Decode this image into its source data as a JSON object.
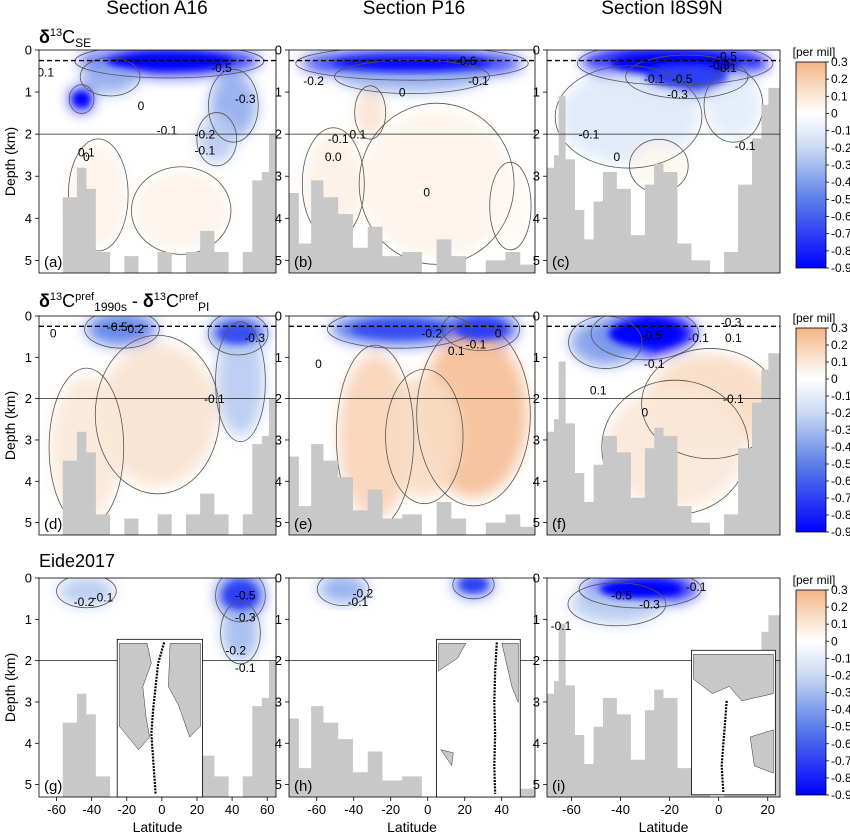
{
  "column_titles": [
    "Section A16",
    "Section P16",
    "Section I8S9N"
  ],
  "row_titles": [
    {
      "prefix": "δ",
      "sup": "13",
      "main": "C",
      "sub": "SE"
    },
    {
      "parts": [
        {
          "t": "δ",
          "bold": true
        },
        {
          "t": "13",
          "sup": true
        },
        {
          "t": "C"
        },
        {
          "t": "pref",
          "sup": true
        },
        {
          "t": "1990s",
          "sub": true
        },
        {
          "t": " - "
        },
        {
          "t": "δ",
          "bold": true
        },
        {
          "t": "13",
          "sup": true
        },
        {
          "t": "C"
        },
        {
          "t": "pref",
          "sup": true
        },
        {
          "t": "PI",
          "sub": true
        }
      ]
    },
    {
      "text": "Eide2017"
    }
  ],
  "colorbar": {
    "unit": "[per mil]",
    "ticks": [
      "0.3",
      "0.2",
      "0.1",
      "0",
      "-0.1",
      "-0.2",
      "-0.3",
      "-0.4",
      "-0.5",
      "-0.6",
      "-0.7",
      "-0.8",
      "-0.9"
    ],
    "stops": [
      {
        "v": 0.3,
        "c": "#f4b486"
      },
      {
        "v": 0.15,
        "c": "#f9dcc4"
      },
      {
        "v": 0.0,
        "c": "#ffffff"
      },
      {
        "v": -0.2,
        "c": "#c9daf3"
      },
      {
        "v": -0.5,
        "c": "#5b7fe8"
      },
      {
        "v": -0.9,
        "c": "#0000ff"
      }
    ]
  },
  "y_axis": {
    "label": "Depth (km)",
    "ticks": [
      "0",
      "1",
      "2",
      "3",
      "4",
      "5"
    ]
  },
  "x_axis": {
    "label": "Latitude"
  },
  "chart_data": [
    {
      "panel": "(a)",
      "type": "heatmap",
      "section": "Section A16",
      "field": "δ13C_SE",
      "xlim": [
        -70,
        65
      ],
      "ylim": [
        5.3,
        0
      ],
      "contour_labels": [
        "-0.1",
        "-0.5",
        "-0.3",
        "0",
        "-0.1",
        "-0.2",
        "-0.1",
        "0.1",
        "0"
      ]
    },
    {
      "panel": "(b)",
      "type": "heatmap",
      "section": "Section P16",
      "field": "δ13C_SE",
      "xlim": [
        -75,
        58
      ],
      "ylim": [
        5.3,
        0
      ],
      "contour_labels": [
        "-0.6",
        "-0.2",
        "-0.1",
        "0",
        "-0.1",
        "0.1",
        "0.0",
        "0"
      ]
    },
    {
      "panel": "(c)",
      "type": "heatmap",
      "section": "Section I8S9N",
      "field": "δ13C_SE",
      "xlim": [
        -70,
        25
      ],
      "ylim": [
        5.3,
        0
      ],
      "contour_labels": [
        "-0.5",
        "-0.3",
        "-0.1",
        "-0.5",
        "-0.3",
        "-0.1",
        "-0.1",
        "-0.1",
        "0"
      ]
    },
    {
      "panel": "(d)",
      "type": "heatmap",
      "section": "Section A16",
      "field": "δ13C_pref_1990s - δ13C_pref_PI",
      "xlim": [
        -70,
        65
      ],
      "ylim": [
        5.3,
        0
      ],
      "contour_labels": [
        "0",
        "-0.5",
        "-0.2",
        "-0.3",
        "-0.1"
      ]
    },
    {
      "panel": "(e)",
      "type": "heatmap",
      "section": "Section P16",
      "field": "δ13C_pref_1990s - δ13C_pref_PI",
      "xlim": [
        -75,
        58
      ],
      "ylim": [
        5.3,
        0
      ],
      "contour_labels": [
        "-0.2",
        "-0.1",
        "0.1",
        "0",
        "0"
      ]
    },
    {
      "panel": "(f)",
      "type": "heatmap",
      "section": "Section I8S9N",
      "field": "δ13C_pref_1990s - δ13C_pref_PI",
      "xlim": [
        -70,
        25
      ],
      "ylim": [
        5.3,
        0
      ],
      "contour_labels": [
        "-0.5",
        "-0.3",
        "-0.1",
        "0.1",
        "-0.1",
        "0",
        "0.1",
        "-0.1"
      ]
    },
    {
      "panel": "(g)",
      "type": "heatmap",
      "section": "Section A16",
      "field": "Eide2017",
      "xlim": [
        -70,
        65
      ],
      "ylim": [
        5.3,
        0
      ],
      "x_ticks": [
        -60,
        -40,
        -20,
        0,
        20,
        40,
        60
      ],
      "contour_labels": [
        "-0.2",
        "-0.1",
        "-0.5",
        "-0.3",
        "-0.2",
        "-0.1"
      ]
    },
    {
      "panel": "(h)",
      "type": "heatmap",
      "section": "Section P16",
      "field": "Eide2017",
      "xlim": [
        -75,
        58
      ],
      "ylim": [
        5.3,
        0
      ],
      "x_ticks": [
        -60,
        -40,
        -20,
        0,
        20,
        40
      ],
      "contour_labels": [
        "-0.2",
        "-0.1"
      ]
    },
    {
      "panel": "(i)",
      "type": "heatmap",
      "section": "Section I8S9N",
      "field": "Eide2017",
      "xlim": [
        -70,
        25
      ],
      "ylim": [
        5.3,
        0
      ],
      "x_ticks": [
        -60,
        -40,
        -20,
        0,
        20
      ],
      "contour_labels": [
        "-0.5",
        "-0.3",
        "-0.1",
        "-0.1"
      ]
    }
  ]
}
